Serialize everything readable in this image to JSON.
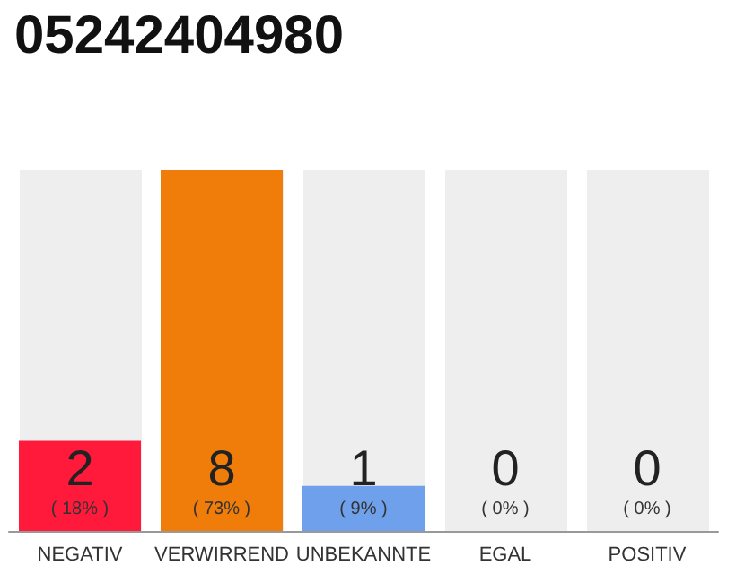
{
  "chart_data": {
    "type": "bar",
    "title": "05242404980",
    "categories": [
      "NEGATIV",
      "VERWIRREND",
      "UNBEKANNTE",
      "EGAL",
      "POSITIV"
    ],
    "values": [
      2,
      8,
      1,
      0,
      0
    ],
    "colors": [
      "#ff1a3c",
      "#f07d0a",
      "#6ea0ec",
      "#cccccc",
      "#cccccc"
    ],
    "data_labels": true,
    "annotations": [
      "( 18% )",
      "( 73% )",
      "( 9% )",
      "( 0% )",
      "( 0% )"
    ]
  }
}
